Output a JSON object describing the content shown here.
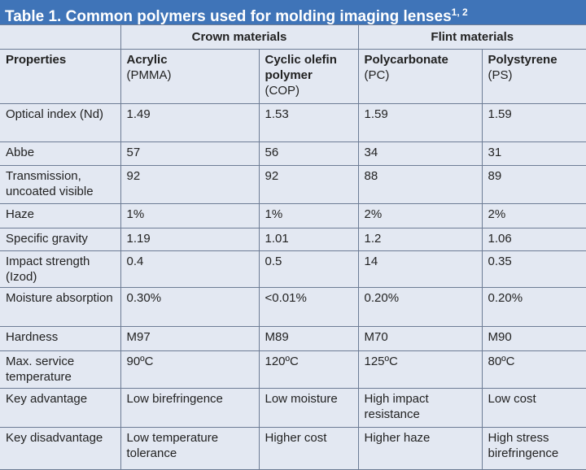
{
  "title": {
    "text": "Table 1. Common polymers used for molding imaging lenses",
    "superscript": "1, 2"
  },
  "groups": [
    "Crown materials",
    "Flint materials"
  ],
  "header": {
    "properties": "Properties",
    "materials": [
      {
        "name": "Acrylic",
        "abbr": "(PMMA)"
      },
      {
        "name": "Cyclic olefin polymer",
        "abbr": "(COP)"
      },
      {
        "name": "Polycarbonate",
        "abbr": "(PC)"
      },
      {
        "name": "Polystyrene",
        "abbr": "(PS)"
      }
    ]
  },
  "rows": [
    [
      "Optical index (Nd)",
      "1.49",
      "1.53",
      "1.59",
      "1.59"
    ],
    [
      "Abbe",
      "57",
      "56",
      "34",
      "31"
    ],
    [
      "Transmission, uncoated visible",
      "92",
      "92",
      "88",
      "89"
    ],
    [
      "Haze",
      "1%",
      "1%",
      "2%",
      "2%"
    ],
    [
      "Specific gravity",
      "1.19",
      "1.01",
      "1.2",
      "1.06"
    ],
    [
      "Impact strength (Izod)",
      "0.4",
      "0.5",
      "14",
      "0.35"
    ],
    [
      "Moisture absorption",
      "0.30%",
      "<0.01%",
      "0.20%",
      "0.20%"
    ],
    [
      "Hardness",
      "M97",
      "M89",
      "M70",
      "M90"
    ],
    [
      "Max. service temperature",
      "90ºC",
      "120ºC",
      "125ºC",
      "80ºC"
    ],
    [
      "Key advantage",
      "Low birefringence",
      "Low moisture",
      "High impact resistance",
      "Low cost"
    ],
    [
      "Key disadvantage",
      "Low temperature tolerance",
      "Higher cost",
      "Higher haze",
      "High stress birefringence"
    ]
  ]
}
